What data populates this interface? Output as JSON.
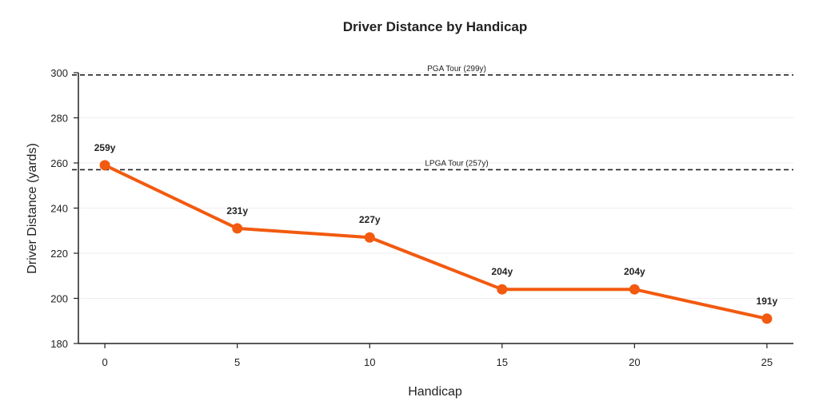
{
  "chart_data": {
    "type": "line",
    "title": "Driver Distance by Handicap",
    "xlabel": "Handicap",
    "ylabel": "Driver Distance (yards)",
    "x": [
      0,
      5,
      10,
      15,
      20,
      25
    ],
    "series": [
      {
        "values": [
          259,
          231,
          227,
          204,
          204,
          191
        ],
        "labels": [
          "259y",
          "231y",
          "227y",
          "204y",
          "204y",
          "191y"
        ],
        "color": "#F25A0F"
      }
    ],
    "xticks": [
      "0",
      "5",
      "10",
      "15",
      "20",
      "25"
    ],
    "yticks": [
      "180",
      "200",
      "220",
      "240",
      "260",
      "280",
      "300"
    ],
    "xlim": [
      -1,
      26
    ],
    "ylim": [
      180,
      300
    ],
    "grid": true,
    "reference_lines": [
      {
        "value": 299,
        "label": "PGA Tour (299y)"
      },
      {
        "value": 257,
        "label": "LPGA Tour (257y)"
      }
    ]
  }
}
